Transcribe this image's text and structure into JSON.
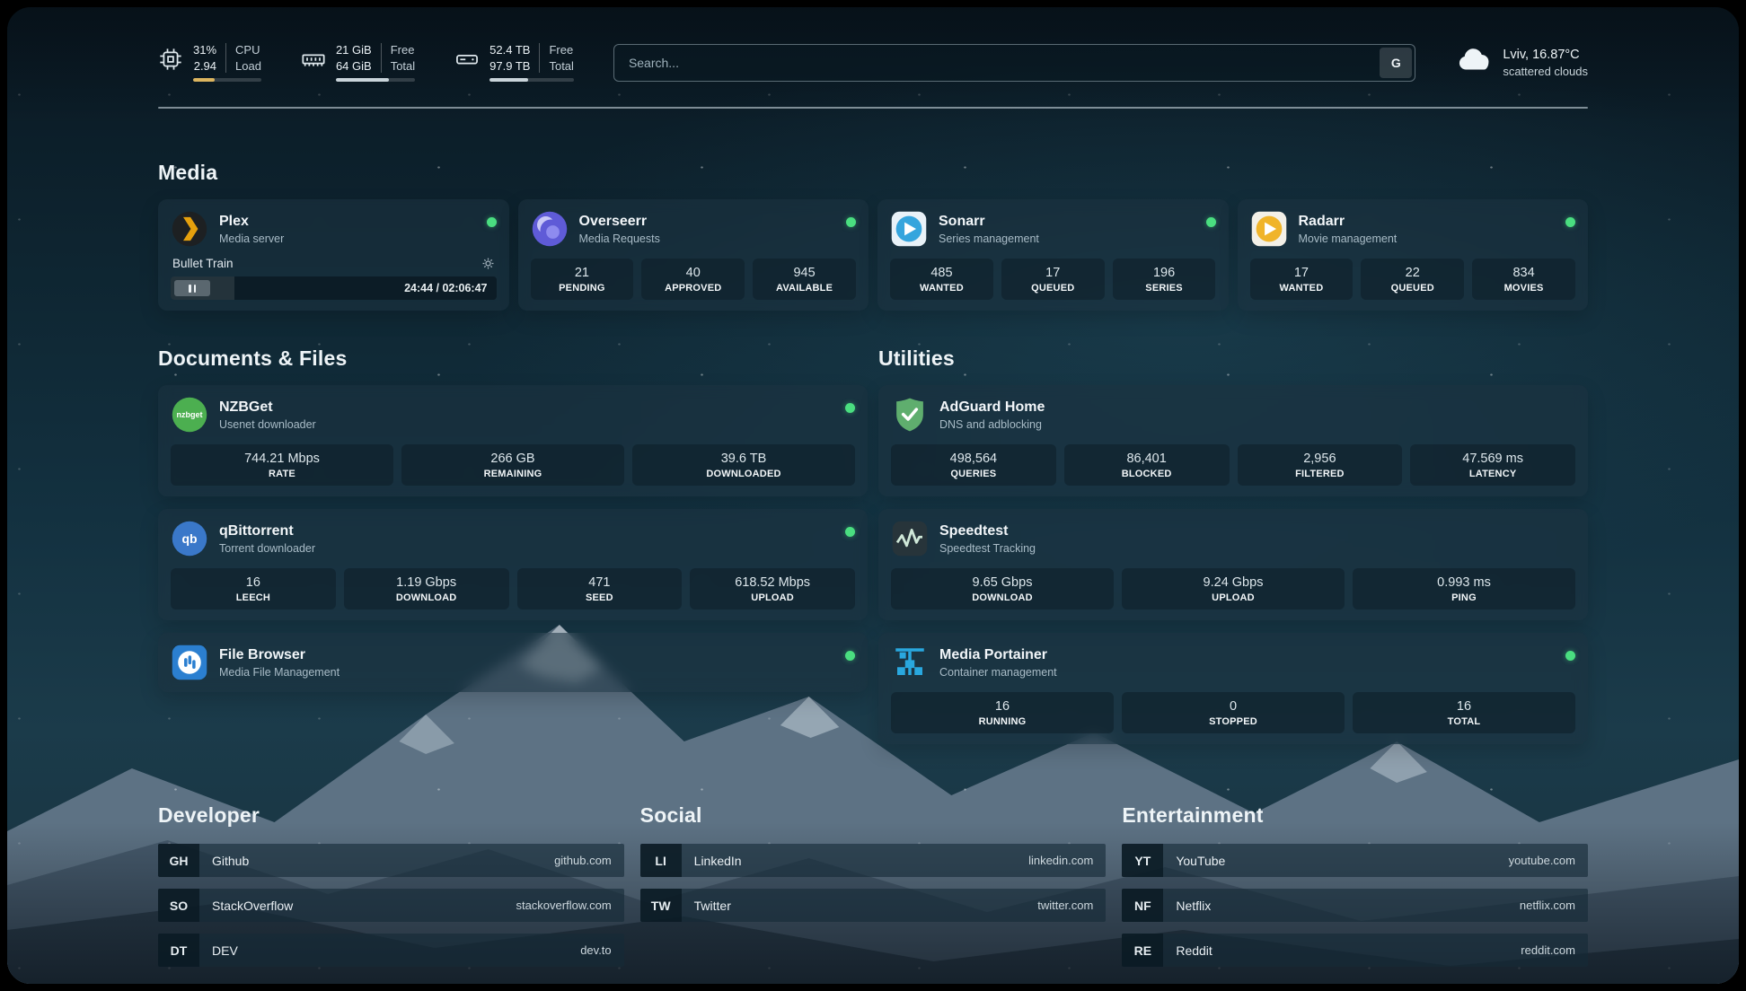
{
  "theme": {
    "status_green": "#4ade80",
    "cpu_bar_fill": "#dcb55f",
    "bar_fill": "#c9d4da",
    "plex_orange": "#e5a00d",
    "overseerr_purple": "#5f5bd7",
    "sonarr_blue": "#35a5dd",
    "radarr_yellow": "#f0b429",
    "nzbget_green": "#4caf50",
    "qbittorrent_blue": "#3a78c9",
    "filebrowser_blue": "#2b7fd0",
    "adguard_green": "#5fae6e",
    "portainer_blue": "#29a8df"
  },
  "header": {
    "cpu": {
      "percent": "31%",
      "load": "2.94",
      "label1": "CPU",
      "label2": "Load",
      "progress": 31
    },
    "ram": {
      "free": "21 GiB",
      "total": "64 GiB",
      "label1": "Free",
      "label2": "Total",
      "progress": 67
    },
    "disk": {
      "free": "52.4 TB",
      "total": "97.9 TB",
      "label1": "Free",
      "label2": "Total",
      "progress": 46
    },
    "search": {
      "placeholder": "Search...",
      "button_label": "G"
    },
    "weather": {
      "location": "Lviv, 16.87°C",
      "condition": "scattered clouds"
    }
  },
  "media": {
    "title": "Media",
    "plex": {
      "name": "Plex",
      "subtitle": "Media server",
      "now_playing": "Bullet Train",
      "time": "24:44 / 02:06:47",
      "progress": 19.5
    },
    "overseerr": {
      "name": "Overseerr",
      "subtitle": "Media Requests",
      "stats": [
        {
          "value": "21",
          "label": "PENDING"
        },
        {
          "value": "40",
          "label": "APPROVED"
        },
        {
          "value": "945",
          "label": "AVAILABLE"
        }
      ]
    },
    "sonarr": {
      "name": "Sonarr",
      "subtitle": "Series management",
      "stats": [
        {
          "value": "485",
          "label": "WANTED"
        },
        {
          "value": "17",
          "label": "QUEUED"
        },
        {
          "value": "196",
          "label": "SERIES"
        }
      ]
    },
    "radarr": {
      "name": "Radarr",
      "subtitle": "Movie management",
      "stats": [
        {
          "value": "17",
          "label": "WANTED"
        },
        {
          "value": "22",
          "label": "QUEUED"
        },
        {
          "value": "834",
          "label": "MOVIES"
        }
      ]
    }
  },
  "documents": {
    "title": "Documents & Files",
    "nzbget": {
      "name": "NZBGet",
      "subtitle": "Usenet downloader",
      "icon_text": "nzbget",
      "stats": [
        {
          "value": "744.21 Mbps",
          "label": "RATE"
        },
        {
          "value": "266 GB",
          "label": "REMAINING"
        },
        {
          "value": "39.6 TB",
          "label": "DOWNLOADED"
        }
      ]
    },
    "qbittorrent": {
      "name": "qBittorrent",
      "subtitle": "Torrent downloader",
      "icon_text": "qb",
      "stats": [
        {
          "value": "16",
          "label": "LEECH"
        },
        {
          "value": "1.19 Gbps",
          "label": "DOWNLOAD"
        },
        {
          "value": "471",
          "label": "SEED"
        },
        {
          "value": "618.52 Mbps",
          "label": "UPLOAD"
        }
      ]
    },
    "filebrowser": {
      "name": "File Browser",
      "subtitle": "Media File Management"
    }
  },
  "utilities": {
    "title": "Utilities",
    "adguard": {
      "name": "AdGuard Home",
      "subtitle": "DNS and adblocking",
      "stats": [
        {
          "value": "498,564",
          "label": "QUERIES"
        },
        {
          "value": "86,401",
          "label": "BLOCKED"
        },
        {
          "value": "2,956",
          "label": "FILTERED"
        },
        {
          "value": "47.569 ms",
          "label": "LATENCY"
        }
      ]
    },
    "speedtest": {
      "name": "Speedtest",
      "subtitle": "Speedtest Tracking",
      "stats": [
        {
          "value": "9.65 Gbps",
          "label": "DOWNLOAD"
        },
        {
          "value": "9.24 Gbps",
          "label": "UPLOAD"
        },
        {
          "value": "0.993 ms",
          "label": "PING"
        }
      ]
    },
    "portainer": {
      "name": "Media Portainer",
      "subtitle": "Container management",
      "stats": [
        {
          "value": "16",
          "label": "RUNNING"
        },
        {
          "value": "0",
          "label": "STOPPED"
        },
        {
          "value": "16",
          "label": "TOTAL"
        }
      ]
    }
  },
  "bookmarks": {
    "developer": {
      "title": "Developer",
      "items": [
        {
          "abbr": "GH",
          "name": "Github",
          "url": "github.com"
        },
        {
          "abbr": "SO",
          "name": "StackOverflow",
          "url": "stackoverflow.com"
        },
        {
          "abbr": "DT",
          "name": "DEV",
          "url": "dev.to"
        }
      ]
    },
    "social": {
      "title": "Social",
      "items": [
        {
          "abbr": "LI",
          "name": "LinkedIn",
          "url": "linkedin.com"
        },
        {
          "abbr": "TW",
          "name": "Twitter",
          "url": "twitter.com"
        }
      ]
    },
    "entertainment": {
      "title": "Entertainment",
      "items": [
        {
          "abbr": "YT",
          "name": "YouTube",
          "url": "youtube.com"
        },
        {
          "abbr": "NF",
          "name": "Netflix",
          "url": "netflix.com"
        },
        {
          "abbr": "RE",
          "name": "Reddit",
          "url": "reddit.com"
        }
      ]
    }
  }
}
